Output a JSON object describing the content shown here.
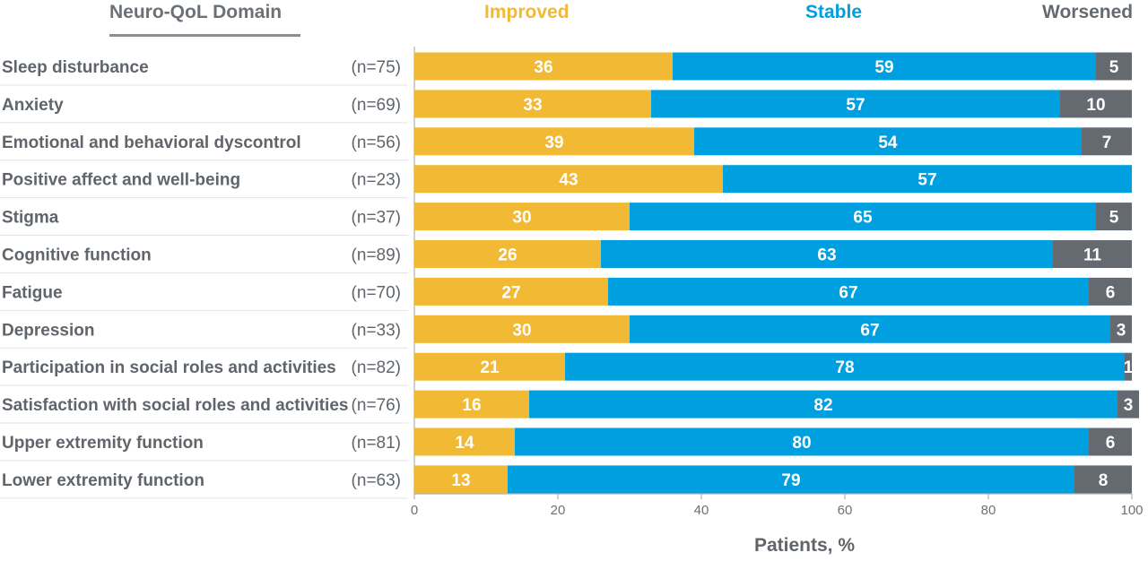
{
  "chart_data": {
    "type": "bar",
    "orientation": "horizontal",
    "stacked": true,
    "domain_header": "Neuro-QoL Domain",
    "xlabel": "Patients, %",
    "xlim": [
      0,
      100
    ],
    "x_ticks": [
      0,
      20,
      40,
      60,
      80,
      100
    ],
    "grid": false,
    "legend_position": "top",
    "categories": [
      "Sleep disturbance",
      "Anxiety",
      "Emotional and behavioral dyscontrol",
      "Positive affect and well-being",
      "Stigma",
      "Cognitive function",
      "Fatigue",
      "Depression",
      "Participation in social roles and activities",
      "Satisfaction with social roles and activities",
      "Upper extremity function",
      "Lower extremity function"
    ],
    "n_labels": [
      "(n=75)",
      "(n=69)",
      "(n=56)",
      "(n=23)",
      "(n=37)",
      "(n=89)",
      "(n=70)",
      "(n=33)",
      "(n=82)",
      "(n=76)",
      "(n=81)",
      "(n=63)"
    ],
    "series": [
      {
        "name": "Improved",
        "color": "#f2b935",
        "values": [
          36,
          33,
          39,
          43,
          30,
          26,
          27,
          30,
          21,
          16,
          14,
          13
        ]
      },
      {
        "name": "Stable",
        "color": "#009fe0",
        "values": [
          59,
          57,
          54,
          57,
          65,
          63,
          67,
          67,
          78,
          82,
          80,
          79
        ]
      },
      {
        "name": "Worsened",
        "color": "#646a70",
        "values": [
          5,
          10,
          7,
          0,
          5,
          11,
          6,
          3,
          1,
          3,
          6,
          8
        ]
      }
    ]
  }
}
